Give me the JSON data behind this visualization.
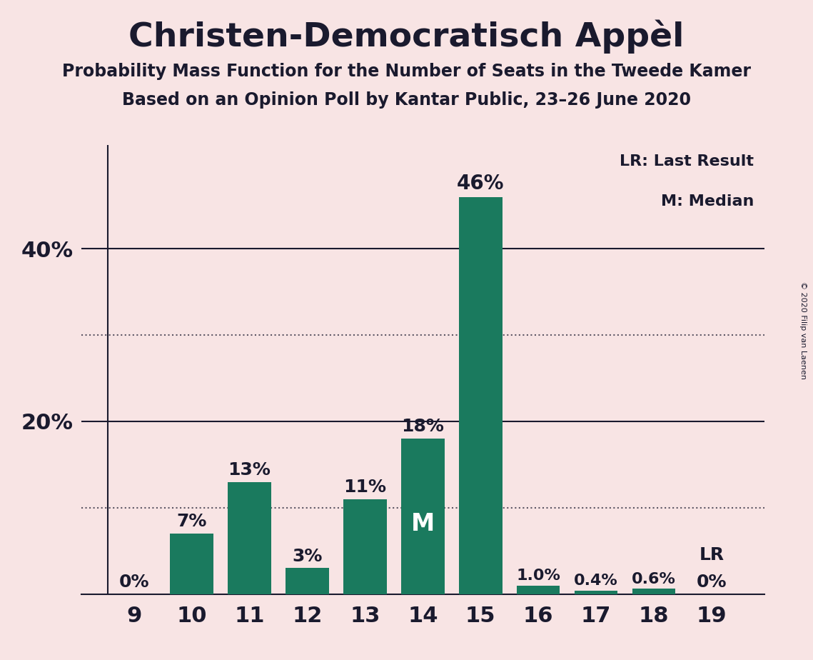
{
  "title": "Christen-Democratisch Appèl",
  "subtitle1": "Probability Mass Function for the Number of Seats in the Tweede Kamer",
  "subtitle2": "Based on an Opinion Poll by Kantar Public, 23–26 June 2020",
  "copyright": "© 2020 Filip van Laenen",
  "seats": [
    9,
    10,
    11,
    12,
    13,
    14,
    15,
    16,
    17,
    18,
    19
  ],
  "probabilities": [
    0.0,
    7.0,
    13.0,
    3.0,
    11.0,
    18.0,
    46.0,
    1.0,
    0.4,
    0.6,
    0.0
  ],
  "labels": [
    "0%",
    "7%",
    "13%",
    "3%",
    "11%",
    "18%",
    "46%",
    "1.0%",
    "0.4%",
    "0.6%",
    "0%"
  ],
  "bar_color": "#1a7a5e",
  "background_color": "#f8e4e4",
  "text_color": "#1a1a2e",
  "median_seat": 14,
  "last_result_seat": 19,
  "legend_lr": "LR: Last Result",
  "legend_m": "M: Median",
  "lr_label": "LR",
  "m_label": "M",
  "solid_lines": [
    20,
    40
  ],
  "dotted_lines": [
    10,
    30
  ],
  "ylim": [
    0,
    52
  ],
  "label_fontsize": 18,
  "tick_fontsize": 22,
  "title_fontsize": 34,
  "subtitle_fontsize": 17,
  "ytick_shown": [
    20,
    40
  ]
}
